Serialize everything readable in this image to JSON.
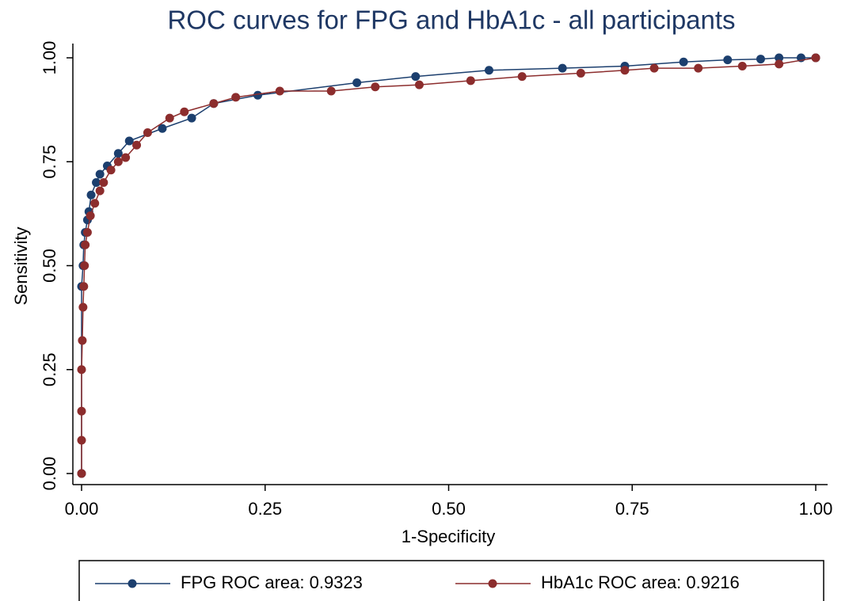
{
  "chart_data": {
    "type": "line",
    "title": "ROC curves for FPG and HbA1c - all participants",
    "x_label": "1-Specificity",
    "y_label": "Sensitivity",
    "xlim": [
      0,
      1
    ],
    "ylim": [
      0,
      1
    ],
    "xticks": [
      {
        "value": 0,
        "label": "0.00"
      },
      0.25,
      {
        "value": 0.5,
        "label": "0.50"
      },
      0.75,
      {
        "value": 1,
        "label": "1.00"
      }
    ],
    "yticks": [
      {
        "value": 0,
        "label": "0.00"
      },
      0.25,
      {
        "value": 0.5,
        "label": "0.50"
      },
      0.75,
      {
        "value": 1,
        "label": "1.00"
      }
    ],
    "series": [
      {
        "name": "FPG ROC area: 0.9323",
        "color": "#1c3f6e",
        "x": [
          0,
          0,
          0.002,
          0.003,
          0.005,
          0.008,
          0.01,
          0.013,
          0.02,
          0.025,
          0.035,
          0.05,
          0.065,
          0.11,
          0.15,
          0.18,
          0.24,
          0.375,
          0.455,
          0.555,
          0.655,
          0.74,
          0.82,
          0.88,
          0.925,
          0.95,
          0.98,
          1
        ],
        "values": [
          0,
          0.45,
          0.5,
          0.55,
          0.58,
          0.61,
          0.63,
          0.67,
          0.7,
          0.72,
          0.74,
          0.77,
          0.8,
          0.83,
          0.855,
          0.89,
          0.91,
          0.94,
          0.955,
          0.97,
          0.975,
          0.98,
          0.99,
          0.995,
          0.997,
          1,
          1,
          1
        ]
      },
      {
        "name": "HbA1c ROC area: 0.9216",
        "color": "#8c2d2d",
        "x": [
          0,
          0,
          0,
          0,
          0.001,
          0.002,
          0.003,
          0.004,
          0.005,
          0.008,
          0.012,
          0.018,
          0.025,
          0.03,
          0.04,
          0.05,
          0.06,
          0.075,
          0.09,
          0.12,
          0.14,
          0.18,
          0.21,
          0.27,
          0.34,
          0.4,
          0.46,
          0.53,
          0.6,
          0.68,
          0.74,
          0.78,
          0.84,
          0.9,
          0.95,
          1
        ],
        "values": [
          0,
          0.08,
          0.15,
          0.25,
          0.32,
          0.4,
          0.45,
          0.5,
          0.55,
          0.58,
          0.62,
          0.65,
          0.68,
          0.7,
          0.73,
          0.75,
          0.76,
          0.79,
          0.82,
          0.855,
          0.87,
          0.89,
          0.905,
          0.92,
          0.92,
          0.93,
          0.935,
          0.945,
          0.955,
          0.963,
          0.97,
          0.975,
          0.975,
          0.98,
          0.985,
          1
        ]
      }
    ]
  }
}
